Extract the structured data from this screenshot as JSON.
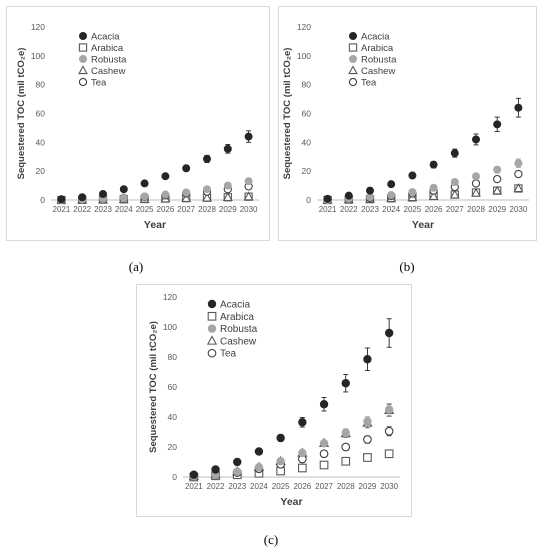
{
  "chart_data": [
    {
      "panel": "a",
      "caption": "(a)",
      "type": "scatter",
      "ylabel": "Sequestered TOC (mil tCO₂e)",
      "xlabel": "Year",
      "ylim": [
        0,
        120
      ],
      "yticks": [
        0,
        20,
        40,
        60,
        80,
        100,
        120
      ],
      "categories": [
        "2021",
        "2022",
        "2023",
        "2024",
        "2025",
        "2026",
        "2027",
        "2028",
        "2029",
        "2030"
      ],
      "legend_position": "top-left",
      "grid": false,
      "series": [
        {
          "name": "Acacia",
          "marker": "filled-circle",
          "color": "#262626",
          "values": [
            0.5,
            1.9,
            4.2,
            7.5,
            11.5,
            16.5,
            22,
            28.5,
            35.5,
            44
          ],
          "errors": [
            0.2,
            0.3,
            0.5,
            0.8,
            1.2,
            1.6,
            2.0,
            2.5,
            3.0,
            4.0
          ]
        },
        {
          "name": "Arabica",
          "marker": "open-square",
          "color": "#595959",
          "values": [
            0,
            0.1,
            0.3,
            0.5,
            0.7,
            1.0,
            1.3,
            1.6,
            1.9,
            2.3
          ],
          "errors": [
            0,
            0,
            0,
            0,
            0,
            0,
            0,
            0,
            0,
            0
          ]
        },
        {
          "name": "Robusta",
          "marker": "filled-circle",
          "color": "#a6a6a6",
          "values": [
            0,
            0.3,
            0.8,
            1.5,
            2.5,
            3.8,
            5.2,
            7.5,
            10,
            13
          ],
          "errors": [
            0,
            0,
            0.1,
            0.2,
            0.3,
            0.4,
            0.6,
            0.8,
            1.0,
            1.5
          ]
        },
        {
          "name": "Cashew",
          "marker": "open-triangle",
          "color": "#595959",
          "values": [
            0,
            0.1,
            0.2,
            0.4,
            0.6,
            0.8,
            1.1,
            1.4,
            1.8,
            2.3
          ],
          "errors": [
            0,
            0,
            0,
            0,
            0,
            0,
            0,
            0,
            0,
            0
          ]
        },
        {
          "name": "Tea",
          "marker": "open-circle",
          "color": "#404040",
          "values": [
            0,
            0.3,
            0.8,
            1.5,
            2.2,
            3.2,
            4.5,
            5.8,
            7.5,
            9.5
          ],
          "errors": [
            0,
            0,
            0.1,
            0.1,
            0.2,
            0.3,
            0.4,
            0.5,
            0.6,
            0.8
          ]
        }
      ]
    },
    {
      "panel": "b",
      "caption": "(b)",
      "type": "scatter",
      "ylabel": "Sequestered TOC (mil tCO₂e)",
      "xlabel": "Year",
      "ylim": [
        0,
        120
      ],
      "yticks": [
        0,
        20,
        40,
        60,
        80,
        100,
        120
      ],
      "categories": [
        "2021",
        "2022",
        "2023",
        "2024",
        "2025",
        "2026",
        "2027",
        "2028",
        "2029",
        "2030"
      ],
      "legend_position": "top-left",
      "grid": false,
      "series": [
        {
          "name": "Acacia",
          "marker": "filled-circle",
          "color": "#262626",
          "values": [
            0.8,
            3,
            6.5,
            11,
            17,
            24.5,
            32.5,
            42,
            52.5,
            64
          ],
          "errors": [
            0.3,
            0.5,
            0.8,
            1.2,
            1.6,
            2.2,
            2.8,
            3.8,
            5.0,
            6.5
          ]
        },
        {
          "name": "Arabica",
          "marker": "open-square",
          "color": "#595959",
          "values": [
            0,
            0.3,
            0.6,
            1.2,
            1.8,
            2.8,
            3.8,
            5.2,
            6.5,
            8
          ],
          "errors": [
            0,
            0,
            0,
            0,
            0,
            0,
            0,
            0,
            0,
            0
          ]
        },
        {
          "name": "Robusta",
          "marker": "filled-circle",
          "color": "#a6a6a6",
          "values": [
            0,
            0.8,
            2,
            3.5,
            5.5,
            8.5,
            12.5,
            16.5,
            21,
            25.5
          ],
          "errors": [
            0,
            0.1,
            0.2,
            0.4,
            0.6,
            0.9,
            1.2,
            1.7,
            2.3,
            3.0
          ]
        },
        {
          "name": "Cashew",
          "marker": "open-triangle",
          "color": "#595959",
          "values": [
            0,
            0.3,
            0.6,
            1.1,
            1.7,
            2.5,
            3.6,
            4.8,
            6.3,
            8
          ],
          "errors": [
            0,
            0,
            0,
            0,
            0,
            0,
            0,
            0,
            0,
            0
          ]
        },
        {
          "name": "Tea",
          "marker": "open-circle",
          "color": "#404040",
          "values": [
            0.3,
            0.6,
            1.5,
            2.8,
            4.5,
            6.5,
            9,
            11.5,
            14.5,
            18
          ],
          "errors": [
            0,
            0,
            0.1,
            0.2,
            0.3,
            0.5,
            0.7,
            0.9,
            1.2,
            1.5
          ]
        }
      ]
    },
    {
      "panel": "c",
      "caption": "(c)",
      "type": "scatter",
      "ylabel": "Sequestered TOC (mil tCO₂e)",
      "xlabel": "Year",
      "ylim": [
        0,
        120
      ],
      "yticks": [
        0,
        20,
        40,
        60,
        80,
        100,
        120
      ],
      "categories": [
        "2021",
        "2022",
        "2023",
        "2024",
        "2025",
        "2026",
        "2027",
        "2028",
        "2029",
        "2030"
      ],
      "legend_position": "top-left",
      "grid": false,
      "series": [
        {
          "name": "Acacia",
          "marker": "filled-circle",
          "color": "#262626",
          "values": [
            1.5,
            5,
            10,
            17,
            26,
            36.5,
            48.5,
            62.5,
            78.5,
            96
          ],
          "errors": [
            0.3,
            0.6,
            1.0,
            1.5,
            2.2,
            3.2,
            4.5,
            5.8,
            7.5,
            9.5
          ]
        },
        {
          "name": "Arabica",
          "marker": "open-square",
          "color": "#595959",
          "values": [
            0,
            0.8,
            1.5,
            2.5,
            4,
            6,
            8,
            10.5,
            13,
            15.5
          ],
          "errors": [
            0,
            0,
            0,
            0,
            0,
            0,
            0,
            0,
            0,
            0
          ]
        },
        {
          "name": "Robusta",
          "marker": "filled-circle",
          "color": "#a6a6a6",
          "values": [
            0.5,
            1.5,
            3.5,
            6.5,
            10.5,
            16,
            22.5,
            29.5,
            37,
            45
          ],
          "errors": [
            0.1,
            0.2,
            0.4,
            0.6,
            1.0,
            1.5,
            2.0,
            2.6,
            3.2,
            4.0
          ]
        },
        {
          "name": "Cashew",
          "marker": "open-triangle",
          "color": "#595959",
          "values": [
            0.5,
            1.5,
            3.5,
            6.5,
            10.5,
            16,
            22.5,
            29,
            36,
            44.5
          ],
          "errors": [
            0.1,
            0.2,
            0.4,
            0.6,
            1.0,
            1.5,
            2.0,
            2.6,
            3.2,
            4.0
          ]
        },
        {
          "name": "Tea",
          "marker": "open-circle",
          "color": "#404040",
          "values": [
            0.5,
            1.5,
            3,
            5.5,
            8.5,
            12,
            15.5,
            20,
            25,
            30.5
          ],
          "errors": [
            0.1,
            0.2,
            0.3,
            0.5,
            0.8,
            1.0,
            1.4,
            1.8,
            2.4,
            3.0
          ]
        }
      ]
    }
  ]
}
